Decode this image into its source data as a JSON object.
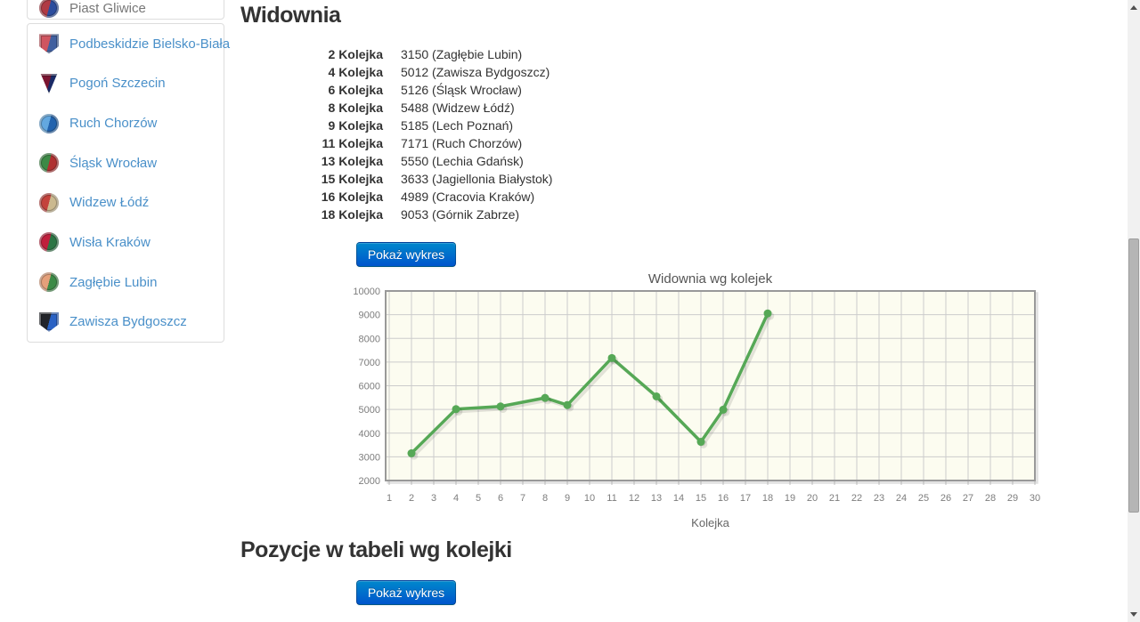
{
  "theme": {
    "link_color": "#4a90c9",
    "active_item_color": "#777777",
    "heading_color": "#333333",
    "text_color": "#333333",
    "panel_border_color": "#dddddd",
    "button_top": "#0088cc",
    "button_bottom": "#0055cc",
    "button_text": "#ffffff"
  },
  "sidebar": {
    "active_team": {
      "name": "Piast Gliwice",
      "crest_shape": "circle",
      "crest_colors": [
        "#b03a44",
        "#2b4d9e"
      ]
    },
    "teams": [
      {
        "name": "Podbeskidzie Bielsko-Biała",
        "crest_shape": "shield",
        "crest_colors": [
          "#d05560",
          "#41609f"
        ]
      },
      {
        "name": "Pogoń Szczecin",
        "crest_shape": "pennant",
        "crest_colors": [
          "#7a1430",
          "#1a2a66"
        ]
      },
      {
        "name": "Ruch Chorzów",
        "crest_shape": "circle",
        "crest_colors": [
          "#63a8e0",
          "#2263ae"
        ]
      },
      {
        "name": "Śląsk Wrocław",
        "crest_shape": "circle",
        "crest_colors": [
          "#3c8a46",
          "#b03030"
        ]
      },
      {
        "name": "Widzew Łódź",
        "crest_shape": "circle",
        "crest_colors": [
          "#c4423c",
          "#cbb98f"
        ]
      },
      {
        "name": "Wisła Kraków",
        "crest_shape": "circle",
        "crest_colors": [
          "#c01f3c",
          "#2c7544"
        ]
      },
      {
        "name": "Zagłębie Lubin",
        "crest_shape": "circle",
        "crest_colors": [
          "#e5a07a",
          "#3c8a46"
        ]
      },
      {
        "name": "Zawisza Bydgoszcz",
        "crest_shape": "shield",
        "crest_colors": [
          "#22242a",
          "#2a62c4"
        ]
      }
    ]
  },
  "main": {
    "attendance_section": {
      "title": "Widownia",
      "rows": [
        {
          "label": "2 Kolejka",
          "value": "3150 (Zagłębie Lubin)"
        },
        {
          "label": "4 Kolejka",
          "value": "5012 (Zawisza Bydgoszcz)"
        },
        {
          "label": "6 Kolejka",
          "value": "5126 (Śląsk Wrocław)"
        },
        {
          "label": "8 Kolejka",
          "value": "5488 (Widzew Łódź)"
        },
        {
          "label": "9 Kolejka",
          "value": "5185 (Lech Poznań)"
        },
        {
          "label": "11 Kolejka",
          "value": "7171 (Ruch Chorzów)"
        },
        {
          "label": "13 Kolejka",
          "value": "5550 (Lechia Gdańsk)"
        },
        {
          "label": "15 Kolejka",
          "value": "3633 (Jagiellonia Białystok)"
        },
        {
          "label": "16 Kolejka",
          "value": "4989 (Cracovia Kraków)"
        },
        {
          "label": "18 Kolejka",
          "value": "9053 (Górnik Zabrze)"
        }
      ],
      "show_chart_button": "Pokaż wykres"
    },
    "positions_section": {
      "title": "Pozycje w tabeli wg kolejki",
      "show_chart_button": "Pokaż wykres"
    }
  },
  "chart_data": {
    "type": "line",
    "title": "Widownia wg kolejek",
    "xlabel": "Kolejka",
    "ylabel": "",
    "x": [
      2,
      4,
      6,
      8,
      9,
      11,
      13,
      15,
      16,
      18
    ],
    "values": [
      3150,
      5012,
      5126,
      5488,
      5185,
      7171,
      5550,
      3633,
      4989,
      9053
    ],
    "xlim": [
      1,
      30
    ],
    "ylim": [
      2000,
      10000
    ],
    "xtick_step": 1,
    "ytick_step": 1000,
    "grid": true,
    "legend": "none",
    "colors": {
      "line": "#56a856",
      "marker": "#56a856",
      "plot_bg": "#fcfcf0",
      "gridline": "#cccccc",
      "border": "#999999",
      "tick_label": "#7d7d7d",
      "title": "#555555",
      "axis_label": "#666666"
    }
  }
}
